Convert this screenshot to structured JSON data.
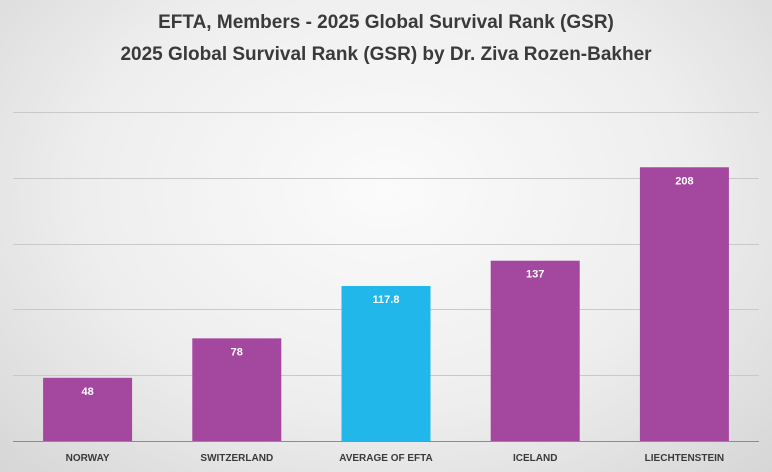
{
  "chart_data": {
    "type": "bar",
    "title": "EFTA, Members - 2025 Global Survival Rank (GSR)",
    "subtitle": "2025 Global Survival Rank (GSR) by Dr. Ziva Rozen-Bakher",
    "categories": [
      "NORWAY",
      "SWITZERLAND",
      "AVERAGE OF EFTA",
      "ICELAND",
      "LIECHTENSTEIN"
    ],
    "values": [
      48,
      78,
      117.8,
      137,
      208
    ],
    "value_labels": [
      "48",
      "78",
      "117.8",
      "137",
      "208"
    ],
    "highlight": [
      false,
      false,
      true,
      false,
      false
    ],
    "ylim": [
      0,
      250
    ],
    "grid_step": 50,
    "grid": true,
    "xlabel": "",
    "ylabel": "",
    "colors": {
      "bar": "#a4479f",
      "highlight": "#22b7ea",
      "label": "#ffffff",
      "grid": "#c9c9c9",
      "axis": "#8c8c8c",
      "tick": "#3a3a3a"
    }
  }
}
